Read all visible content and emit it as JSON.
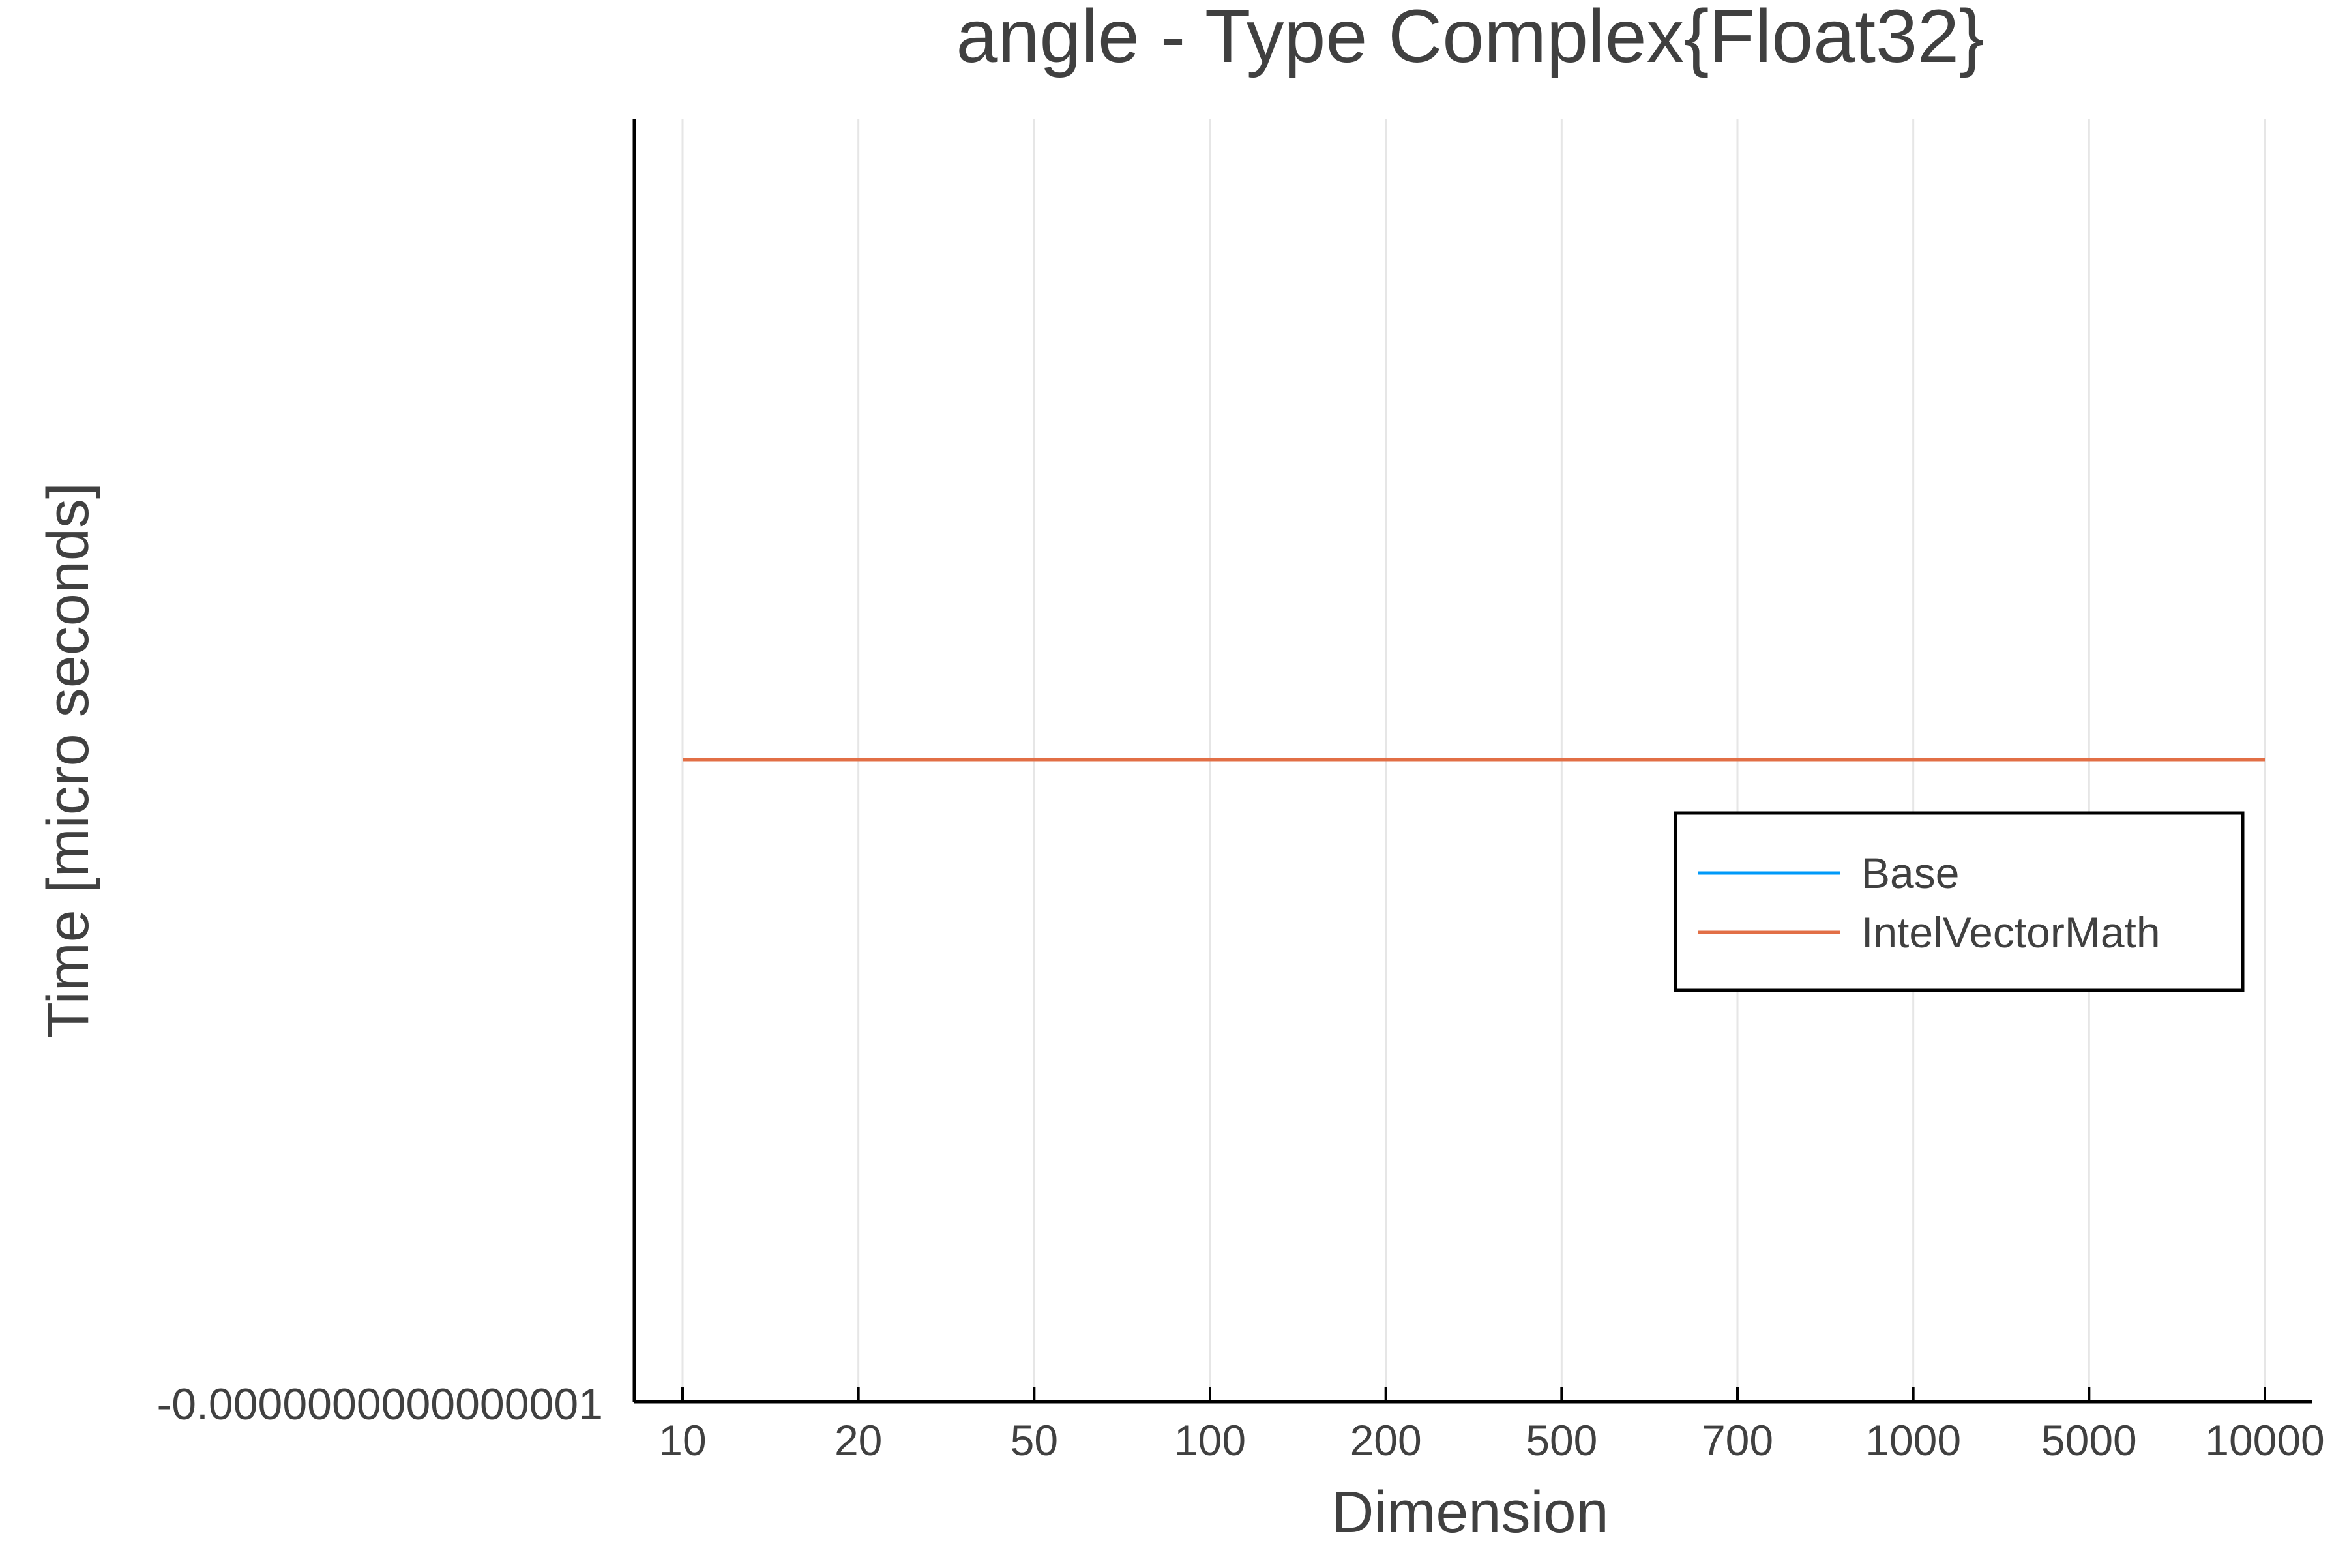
{
  "chart_data": {
    "type": "line",
    "title": "angle - Type Complex{Float32}",
    "xlabel": "Dimension",
    "ylabel": "Time [micro seconds]",
    "categories": [
      "10",
      "20",
      "50",
      "100",
      "200",
      "500",
      "700",
      "1000",
      "5000",
      "10000"
    ],
    "y_tick_labels": [
      "-0.0000000000000001"
    ],
    "grid": true,
    "legend_position": "right",
    "series": [
      {
        "name": "Base",
        "color": "#009af9",
        "values": [
          0,
          0,
          0,
          0,
          0,
          0,
          0,
          0,
          0,
          0
        ]
      },
      {
        "name": "IntelVectorMath",
        "color": "#e26f46",
        "values": [
          0,
          0,
          0,
          0,
          0,
          0,
          0,
          0,
          0,
          0
        ]
      }
    ]
  }
}
